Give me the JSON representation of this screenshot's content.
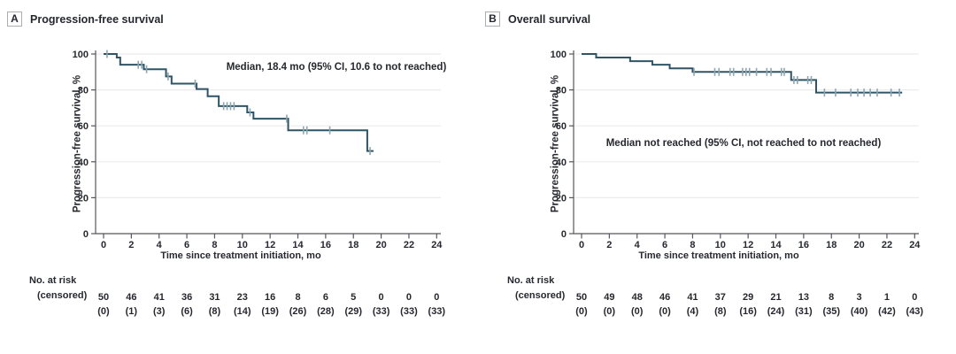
{
  "figure": {
    "kind": "kaplan-meier-two-panel-figure"
  },
  "theme": {
    "background": "#FFFFFF",
    "text_color": "#26282E",
    "line_color": "#2F5465",
    "censor_color": "#8CA6B2",
    "grid_color": "#ECECEC",
    "axis_color": "#55565A",
    "badge_border": "#AAADB2"
  },
  "chart_data": [
    {
      "type": "line",
      "subtype": "kaplan-meier-step",
      "badge": "A",
      "title": "Progression-free survival",
      "xlabel": "Time since treatment initiation, mo",
      "ylabel": "Progression-free survival, %",
      "annotation": "Median, 18.4 mo (95% CI, 10.6 to not reached)",
      "xlim": [
        0,
        24
      ],
      "ylim": [
        0,
        100
      ],
      "x_ticks": [
        0,
        2,
        4,
        6,
        8,
        10,
        12,
        14,
        16,
        18,
        20,
        22,
        24
      ],
      "y_ticks": [
        0,
        20,
        40,
        60,
        80,
        100
      ],
      "grid": "horizontal",
      "legend": "none",
      "steps": [
        [
          0,
          100
        ],
        [
          0.95,
          98
        ],
        [
          1.2,
          94
        ],
        [
          2.9,
          91.5
        ],
        [
          4.5,
          87.5
        ],
        [
          4.9,
          83.5
        ],
        [
          6.7,
          80.5
        ],
        [
          7.5,
          76.5
        ],
        [
          8.3,
          71
        ],
        [
          10.35,
          67.5
        ],
        [
          10.8,
          64
        ],
        [
          13.3,
          57.5
        ],
        [
          19.0,
          46
        ]
      ],
      "end_time": 19.45,
      "censor_marks": [
        [
          0.25,
          100
        ],
        [
          2.5,
          94
        ],
        [
          2.75,
          94
        ],
        [
          3.1,
          91.5
        ],
        [
          4.65,
          87.5
        ],
        [
          6.6,
          83.5
        ],
        [
          8.65,
          71
        ],
        [
          8.9,
          71
        ],
        [
          9.15,
          71
        ],
        [
          9.4,
          71
        ],
        [
          10.55,
          67.5
        ],
        [
          13.2,
          64
        ],
        [
          14.4,
          57.5
        ],
        [
          14.65,
          57.5
        ],
        [
          16.3,
          57.5
        ],
        [
          19.2,
          46
        ]
      ],
      "risk_table": {
        "label": "No. at risk",
        "label2": "(censored)",
        "at_risk": [
          50,
          46,
          41,
          36,
          31,
          23,
          16,
          8,
          6,
          5,
          0,
          0,
          0
        ],
        "censored": [
          "(0)",
          "(1)",
          "(3)",
          "(6)",
          "(8)",
          "(14)",
          "(19)",
          "(26)",
          "(28)",
          "(29)",
          "(33)",
          "(33)",
          "(33)"
        ]
      }
    },
    {
      "type": "line",
      "subtype": "kaplan-meier-step",
      "badge": "B",
      "title": "Overall survival",
      "xlabel": "Time since treatment initiation, mo",
      "ylabel": "Progression-free survival, %",
      "annotation": "Median not reached (95% CI, not reached to not reached)",
      "xlim": [
        0,
        24
      ],
      "ylim": [
        0,
        100
      ],
      "x_ticks": [
        0,
        2,
        4,
        6,
        8,
        10,
        12,
        14,
        16,
        18,
        20,
        22,
        24
      ],
      "y_ticks": [
        0,
        20,
        40,
        60,
        80,
        100
      ],
      "grid": "horizontal",
      "legend": "none",
      "steps": [
        [
          0,
          100
        ],
        [
          1.05,
          98
        ],
        [
          3.5,
          96
        ],
        [
          5.1,
          94
        ],
        [
          6.35,
          92
        ],
        [
          8.0,
          90
        ],
        [
          15.1,
          85.5
        ],
        [
          16.9,
          78.5
        ]
      ],
      "end_time": 23.1,
      "censor_marks": [
        [
          8.1,
          90
        ],
        [
          9.6,
          90
        ],
        [
          9.9,
          90
        ],
        [
          10.7,
          90
        ],
        [
          10.95,
          90
        ],
        [
          11.6,
          90
        ],
        [
          11.85,
          90
        ],
        [
          12.1,
          90
        ],
        [
          12.6,
          90
        ],
        [
          13.35,
          90
        ],
        [
          13.65,
          90
        ],
        [
          14.4,
          90
        ],
        [
          14.6,
          90
        ],
        [
          15.3,
          85.5
        ],
        [
          15.55,
          85.5
        ],
        [
          16.3,
          85.5
        ],
        [
          16.55,
          85.5
        ],
        [
          17.5,
          78.5
        ],
        [
          18.3,
          78.5
        ],
        [
          19.4,
          78.5
        ],
        [
          19.9,
          78.5
        ],
        [
          20.35,
          78.5
        ],
        [
          20.8,
          78.5
        ],
        [
          21.3,
          78.5
        ],
        [
          22.3,
          78.5
        ],
        [
          22.9,
          78.5
        ]
      ],
      "risk_table": {
        "label": "No. at risk",
        "label2": "(censored)",
        "at_risk": [
          50,
          49,
          48,
          46,
          41,
          37,
          29,
          21,
          13,
          8,
          3,
          1,
          0
        ],
        "censored": [
          "(0)",
          "(0)",
          "(0)",
          "(0)",
          "(4)",
          "(8)",
          "(16)",
          "(24)",
          "(31)",
          "(35)",
          "(40)",
          "(42)",
          "(43)"
        ]
      }
    }
  ]
}
